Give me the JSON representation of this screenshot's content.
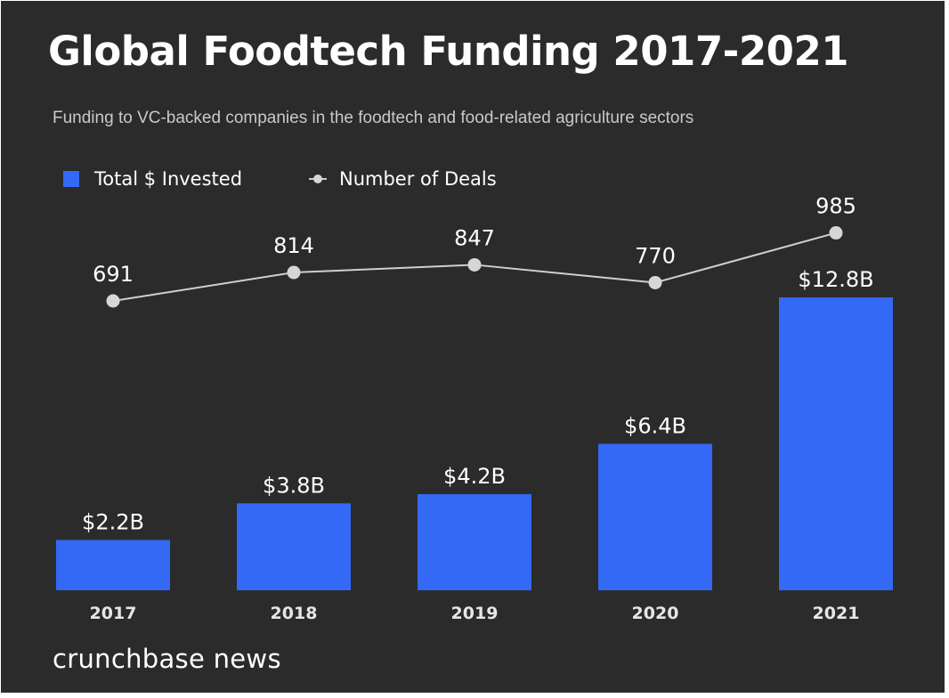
{
  "header": {
    "title": "Global Foodtech Funding 2017-2021",
    "subtitle": "Funding to VC-backed companies in the foodtech and food-related agriculture sectors"
  },
  "legend": {
    "bars_label": "Total $ Invested",
    "line_label": "Number of Deals"
  },
  "footer": {
    "brand": "crunchbase news"
  },
  "colors": {
    "background": "#2b2b2b",
    "bar": "#3369f4",
    "line": "#cfcfcf",
    "marker": "#d6d6d6",
    "text": "#ffffff"
  },
  "chart_data": {
    "type": "bar",
    "categories": [
      "2017",
      "2018",
      "2019",
      "2020",
      "2021"
    ],
    "series": [
      {
        "name": "Total $ Invested",
        "type": "bar",
        "values": [
          2.2,
          3.8,
          4.2,
          6.4,
          12.8
        ],
        "labels": [
          "$2.2B",
          "$3.8B",
          "$4.2B",
          "$6.4B",
          "$12.8B"
        ]
      },
      {
        "name": "Number of Deals",
        "type": "line",
        "values": [
          691,
          814,
          847,
          770,
          985
        ],
        "labels": [
          "691",
          "814",
          "847",
          "770",
          "985"
        ]
      }
    ],
    "legend": "top-left",
    "grid": false
  }
}
